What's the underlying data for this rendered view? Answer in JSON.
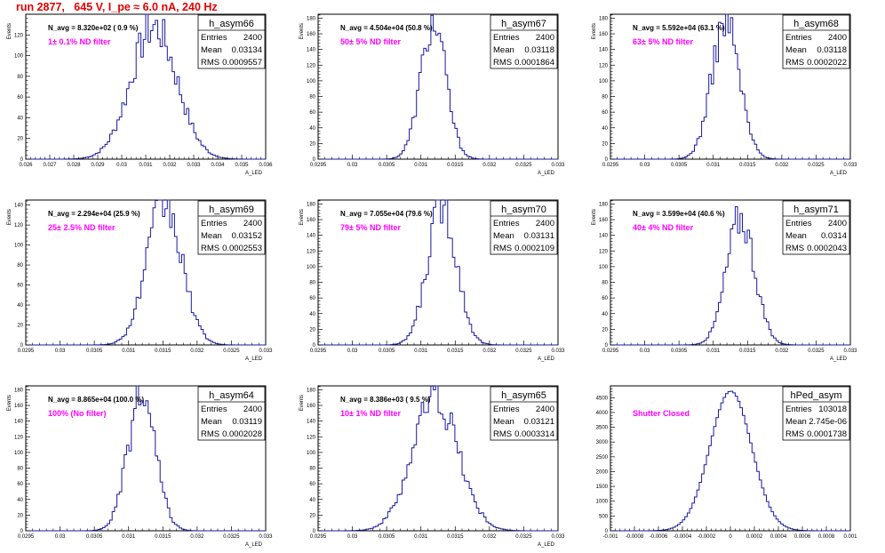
{
  "header": {
    "run_title": "run 2877,   645 V, I_pe ≈ 6.0 nA, 240 Hz"
  },
  "colors": {
    "hist": "#1a1aa0",
    "title": "#e00000",
    "filter": "#ff00ff"
  },
  "chart_data": [
    {
      "type": "histogram",
      "name": "h_asym66",
      "ylabel": "Events",
      "xlabel": "A_LED",
      "n_avg": "N_avg = 8.320e+02 ( 0.9 %)",
      "filter": "1± 0.1% ND filter",
      "entries": "2400",
      "mean": "0.03134",
      "rms": "0.0009557",
      "xlim": [
        0.026,
        0.036
      ],
      "ylim": [
        0,
        140
      ],
      "xticks": [
        "0.026",
        "0.027",
        "0.028",
        "0.029",
        "0.03",
        "0.031",
        "0.032",
        "0.033",
        "0.034",
        "0.035",
        "0.036"
      ],
      "yticks": [
        "0",
        "20",
        "40",
        "60",
        "80",
        "100",
        "120"
      ],
      "center": 0.03134,
      "sigma": 0.0009557,
      "peak": 128
    },
    {
      "type": "histogram",
      "name": "h_asym67",
      "ylabel": "Events",
      "xlabel": "A_LED",
      "n_avg": "N_avg = 4.504e+04 (50.8 %)",
      "filter": "50± 5% ND filter",
      "entries": "2400",
      "mean": "0.03118",
      "rms": "0.0001864",
      "xlim": [
        0.0295,
        0.033
      ],
      "ylim": [
        0,
        185
      ],
      "xticks": [
        "0.0295",
        "0.03",
        "0.0305",
        "0.031",
        "0.0315",
        "0.032",
        "0.0325",
        "0.033"
      ],
      "yticks": [
        "0",
        "20",
        "40",
        "60",
        "80",
        "100",
        "120",
        "140",
        "160",
        "180"
      ],
      "center": 0.03118,
      "sigma": 0.0001864,
      "peak": 172
    },
    {
      "type": "histogram",
      "name": "h_asym68",
      "ylabel": "Events",
      "xlabel": "A_LED",
      "n_avg": "N_avg = 5.592e+04 (63.1 %)",
      "filter": "63± 5% ND filter",
      "entries": "2400",
      "mean": "0.03118",
      "rms": "0.0002022",
      "xlim": [
        0.0295,
        0.033
      ],
      "ylim": [
        0,
        185
      ],
      "xticks": [
        "0.0295",
        "0.03",
        "0.0305",
        "0.031",
        "0.0315",
        "0.032",
        "0.0325",
        "0.033"
      ],
      "yticks": [
        "0",
        "20",
        "40",
        "60",
        "80",
        "100",
        "120",
        "140",
        "160",
        "180"
      ],
      "center": 0.03118,
      "sigma": 0.0002022,
      "peak": 176
    },
    {
      "type": "histogram",
      "name": "h_asym69",
      "ylabel": "Events",
      "xlabel": "A_LED",
      "n_avg": "N_avg = 2.294e+04 (25.9 %)",
      "filter": "25± 2.5% ND filter",
      "entries": "2400",
      "mean": "0.03152",
      "rms": "0.0002553",
      "xlim": [
        0.0295,
        0.033
      ],
      "ylim": [
        0,
        145
      ],
      "xticks": [
        "0.0295",
        "0.03",
        "0.0305",
        "0.031",
        "0.0315",
        "0.032",
        "0.0325",
        "0.033"
      ],
      "yticks": [
        "0",
        "20",
        "40",
        "60",
        "80",
        "100",
        "120",
        "140"
      ],
      "center": 0.03152,
      "sigma": 0.0002553,
      "peak": 140
    },
    {
      "type": "histogram",
      "name": "h_asym70",
      "ylabel": "Events",
      "xlabel": "A_LED",
      "n_avg": "N_avg = 7.055e+04 (79.6 %)",
      "filter": "79± 5% ND filter",
      "entries": "2400",
      "mean": "0.03131",
      "rms": "0.0002109",
      "xlim": [
        0.0295,
        0.033
      ],
      "ylim": [
        0,
        185
      ],
      "xticks": [
        "0.0295",
        "0.03",
        "0.0305",
        "0.031",
        "0.0315",
        "0.032",
        "0.0325",
        "0.033"
      ],
      "yticks": [
        "0",
        "20",
        "40",
        "60",
        "80",
        "100",
        "120",
        "140",
        "160",
        "180"
      ],
      "center": 0.03131,
      "sigma": 0.0002109,
      "peak": 180
    },
    {
      "type": "histogram",
      "name": "h_asym71",
      "ylabel": "Events",
      "xlabel": "A_LED",
      "n_avg": "N_avg = 3.599e+04 (40.6 %)",
      "filter": "40± 4% ND filter",
      "entries": "2400",
      "mean": "0.0314",
      "rms": "0.0002043",
      "xlim": [
        0.0295,
        0.033
      ],
      "ylim": [
        0,
        185
      ],
      "xticks": [
        "0.0295",
        "0.03",
        "0.0305",
        "0.031",
        "0.0315",
        "0.032",
        "0.0325",
        "0.033"
      ],
      "yticks": [
        "0",
        "20",
        "40",
        "60",
        "80",
        "100",
        "120",
        "140",
        "160",
        "180"
      ],
      "center": 0.0314,
      "sigma": 0.0002043,
      "peak": 162
    },
    {
      "type": "histogram",
      "name": "h_asym64",
      "ylabel": "Events",
      "xlabel": "A_LED",
      "n_avg": "N_avg = 8.865e+04 (100.0 %)",
      "filter": "100% (No filter)",
      "entries": "2400",
      "mean": "0.03119",
      "rms": "0.0002028",
      "xlim": [
        0.0295,
        0.033
      ],
      "ylim": [
        0,
        185
      ],
      "xticks": [
        "0.0295",
        "0.03",
        "0.0305",
        "0.031",
        "0.0315",
        "0.032",
        "0.0325",
        "0.033"
      ],
      "yticks": [
        "0",
        "20",
        "40",
        "60",
        "80",
        "100",
        "120",
        "140",
        "160",
        "180"
      ],
      "center": 0.03119,
      "sigma": 0.0002028,
      "peak": 170
    },
    {
      "type": "histogram",
      "name": "h_asym65",
      "ylabel": "Events",
      "xlabel": "A_LED",
      "n_avg": "N_avg = 8.386e+03 ( 9.5 %)",
      "filter": "10± 1% ND filter",
      "entries": "2400",
      "mean": "0.03121",
      "rms": "0.0003314",
      "xlim": [
        0.0295,
        0.033
      ],
      "ylim": [
        0,
        185
      ],
      "xticks": [
        "0.0295",
        "0.03",
        "0.0305",
        "0.031",
        "0.0315",
        "0.032",
        "0.0325",
        "0.033"
      ],
      "yticks": [
        "0",
        "20",
        "40",
        "60",
        "80",
        "100",
        "120",
        "140",
        "160",
        "180"
      ],
      "center": 0.03121,
      "sigma": 0.0003314,
      "peak": 172
    },
    {
      "type": "histogram",
      "name": "hPed_asym",
      "ylabel": "",
      "xlabel": "",
      "n_avg": "",
      "filter": "Shutter Closed",
      "entries": "103018",
      "mean": "2.745e-06",
      "rms": "0.0001738",
      "xlim": [
        -0.001,
        0.001
      ],
      "ylim": [
        0,
        4900
      ],
      "xticks": [
        "-0.001",
        "-0.0008",
        "-0.0006",
        "-0.0004",
        "-0.0002",
        "0",
        "0.0002",
        "0.0004",
        "0.0006",
        "0.0008",
        "0.001"
      ],
      "yticks": [
        "0",
        "500",
        "1000",
        "1500",
        "2000",
        "2500",
        "3000",
        "3500",
        "4000",
        "4500"
      ],
      "center": 2.745e-06,
      "sigma": 0.0001738,
      "peak": 4720
    }
  ]
}
